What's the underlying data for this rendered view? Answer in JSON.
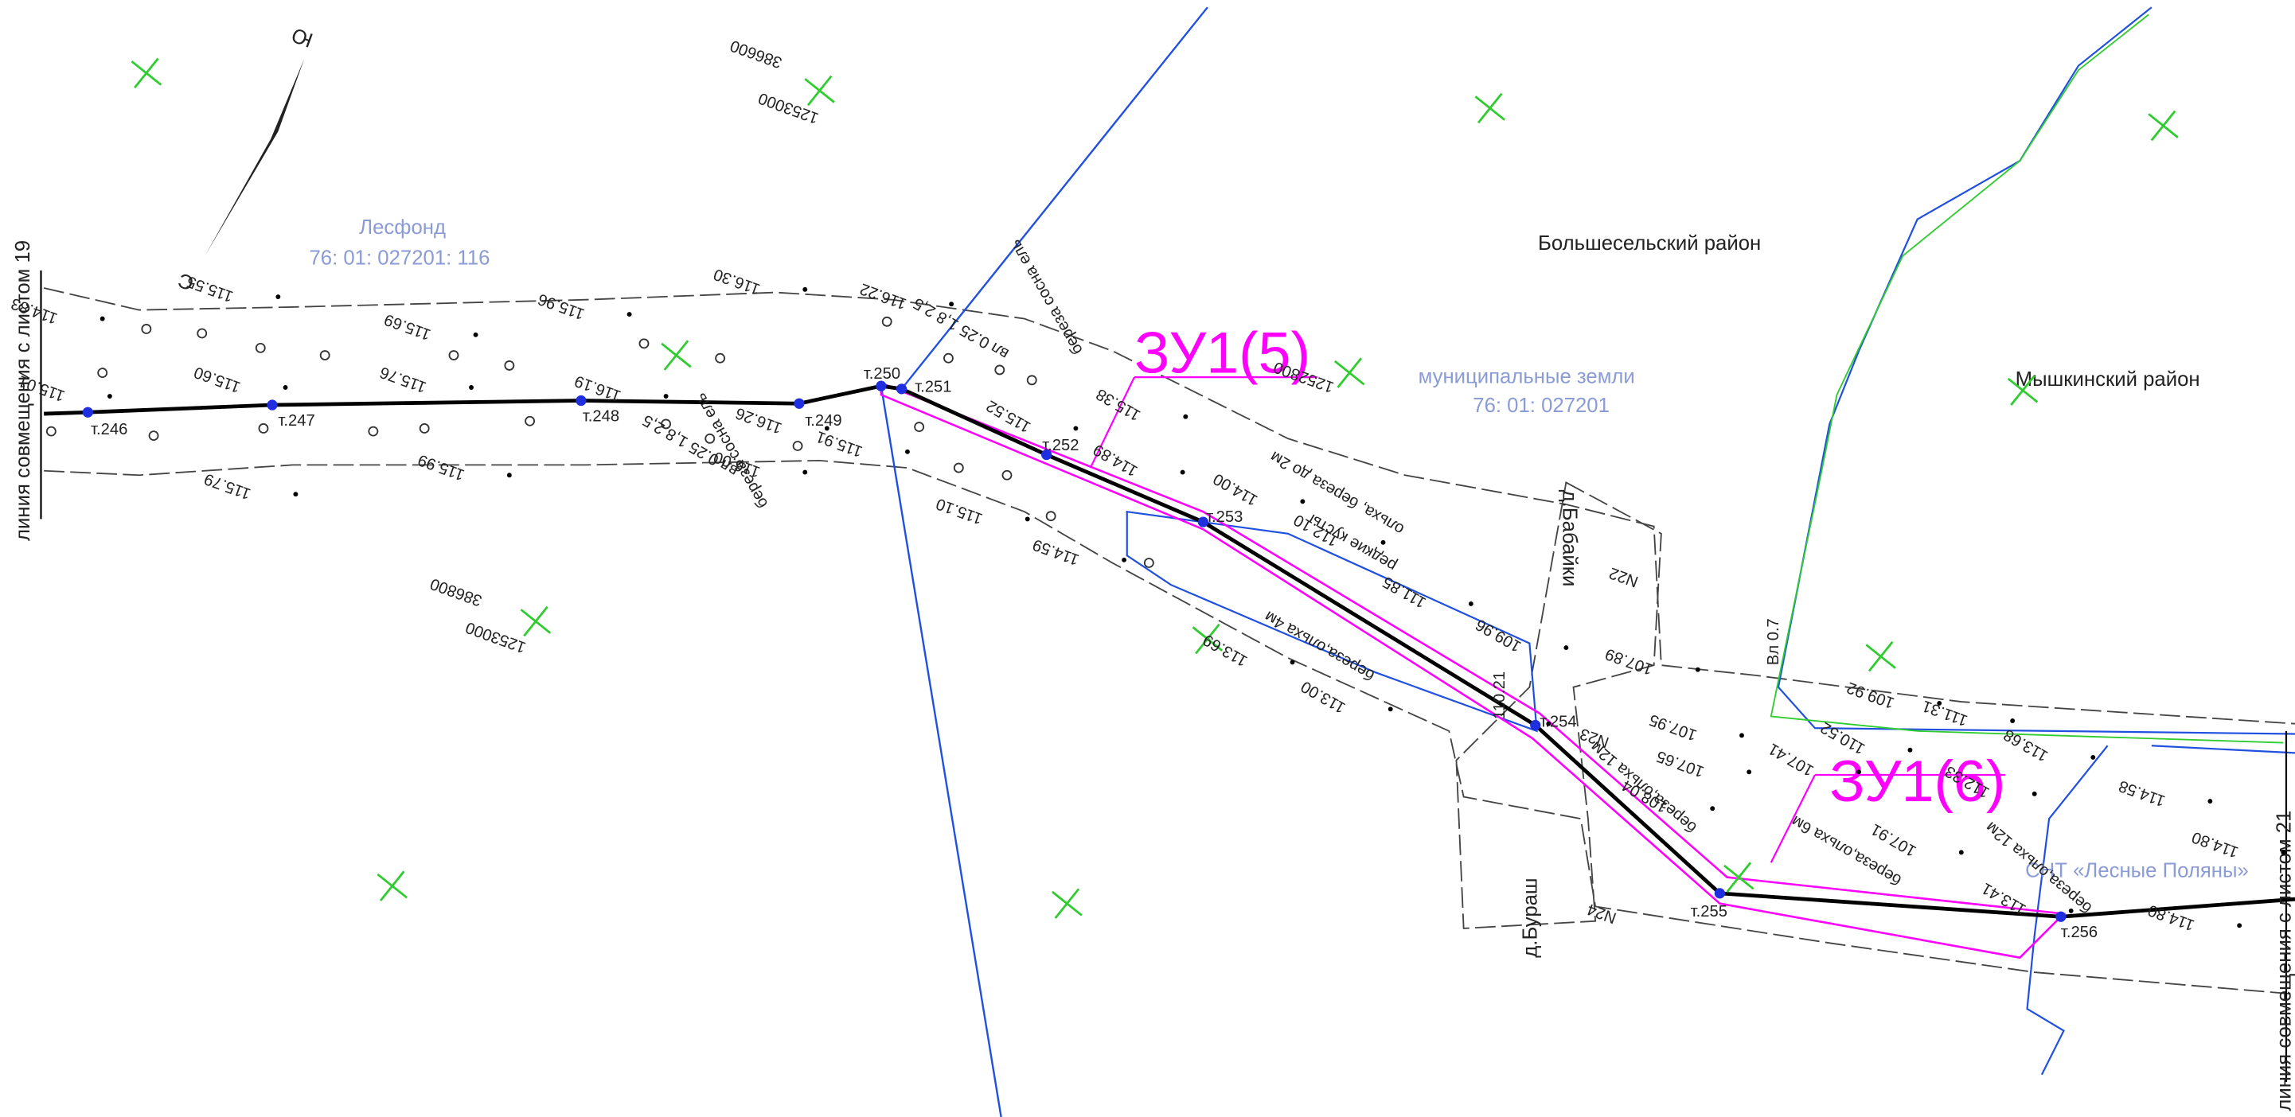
{
  "map": {
    "points": [
      "т.246",
      "т.247",
      "т.248",
      "т.249",
      "т.250",
      "т.251",
      "т.252",
      "т.253",
      "т.254",
      "т.255",
      "т.256"
    ],
    "parcels": [
      "ЗУ1(5)",
      "ЗУ1(6)"
    ],
    "forest_fund": "Лесфонд",
    "forest_cadastral": "76: 01: 027201: 116",
    "municipal": "муниципальные земли",
    "municipal_cadastral": "76: 01: 027201",
    "district_left": "Большесельский район",
    "district_right": "Мышкинский район",
    "settlement": "СНТ «Лесные Поляны»",
    "villages": [
      "д.Бабайки",
      "д.Бураш"
    ],
    "match_lines": [
      "линия совмещения с листом 19",
      "линия совмещения с листом 21"
    ],
    "north": [
      "Ю",
      "С"
    ],
    "coordinates": [
      "386600",
      "1253000",
      "386800",
      "1253000",
      "1252800"
    ],
    "elevations": [
      "115.01",
      "114.83",
      "115.55",
      "115.60",
      "115.69",
      "115.76",
      "115.96",
      "116.19",
      "116.30",
      "116.22",
      "116.26",
      "116.00",
      "115.91",
      "115.79",
      "115.99",
      "115.10",
      "114.59",
      "115.52",
      "114.89",
      "115.38",
      "114.00",
      "112.10",
      "111.85",
      "113.69",
      "113.00",
      "109.96",
      "110.21",
      "107.89",
      "107.95",
      "107.65",
      "108.04",
      "109.92",
      "111.31",
      "107.41",
      "110.52",
      "107.91",
      "112.33",
      "113.68",
      "114.58",
      "114.80",
      "114.80",
      "113.41"
    ],
    "notes": [
      "береза сосна ель",
      "береза сосна ель",
      "вл 0.25 1,8 2,5",
      "вл 0.25 1,8 2,5",
      "ольха, береза до 2м",
      "редкие кусты",
      "береза,ольха 4м",
      "береза,ольха 12м",
      "береза,ольха 6м",
      "береза,ольха 12м",
      "N22",
      "N23",
      "N24",
      "Вл 0.7"
    ]
  }
}
